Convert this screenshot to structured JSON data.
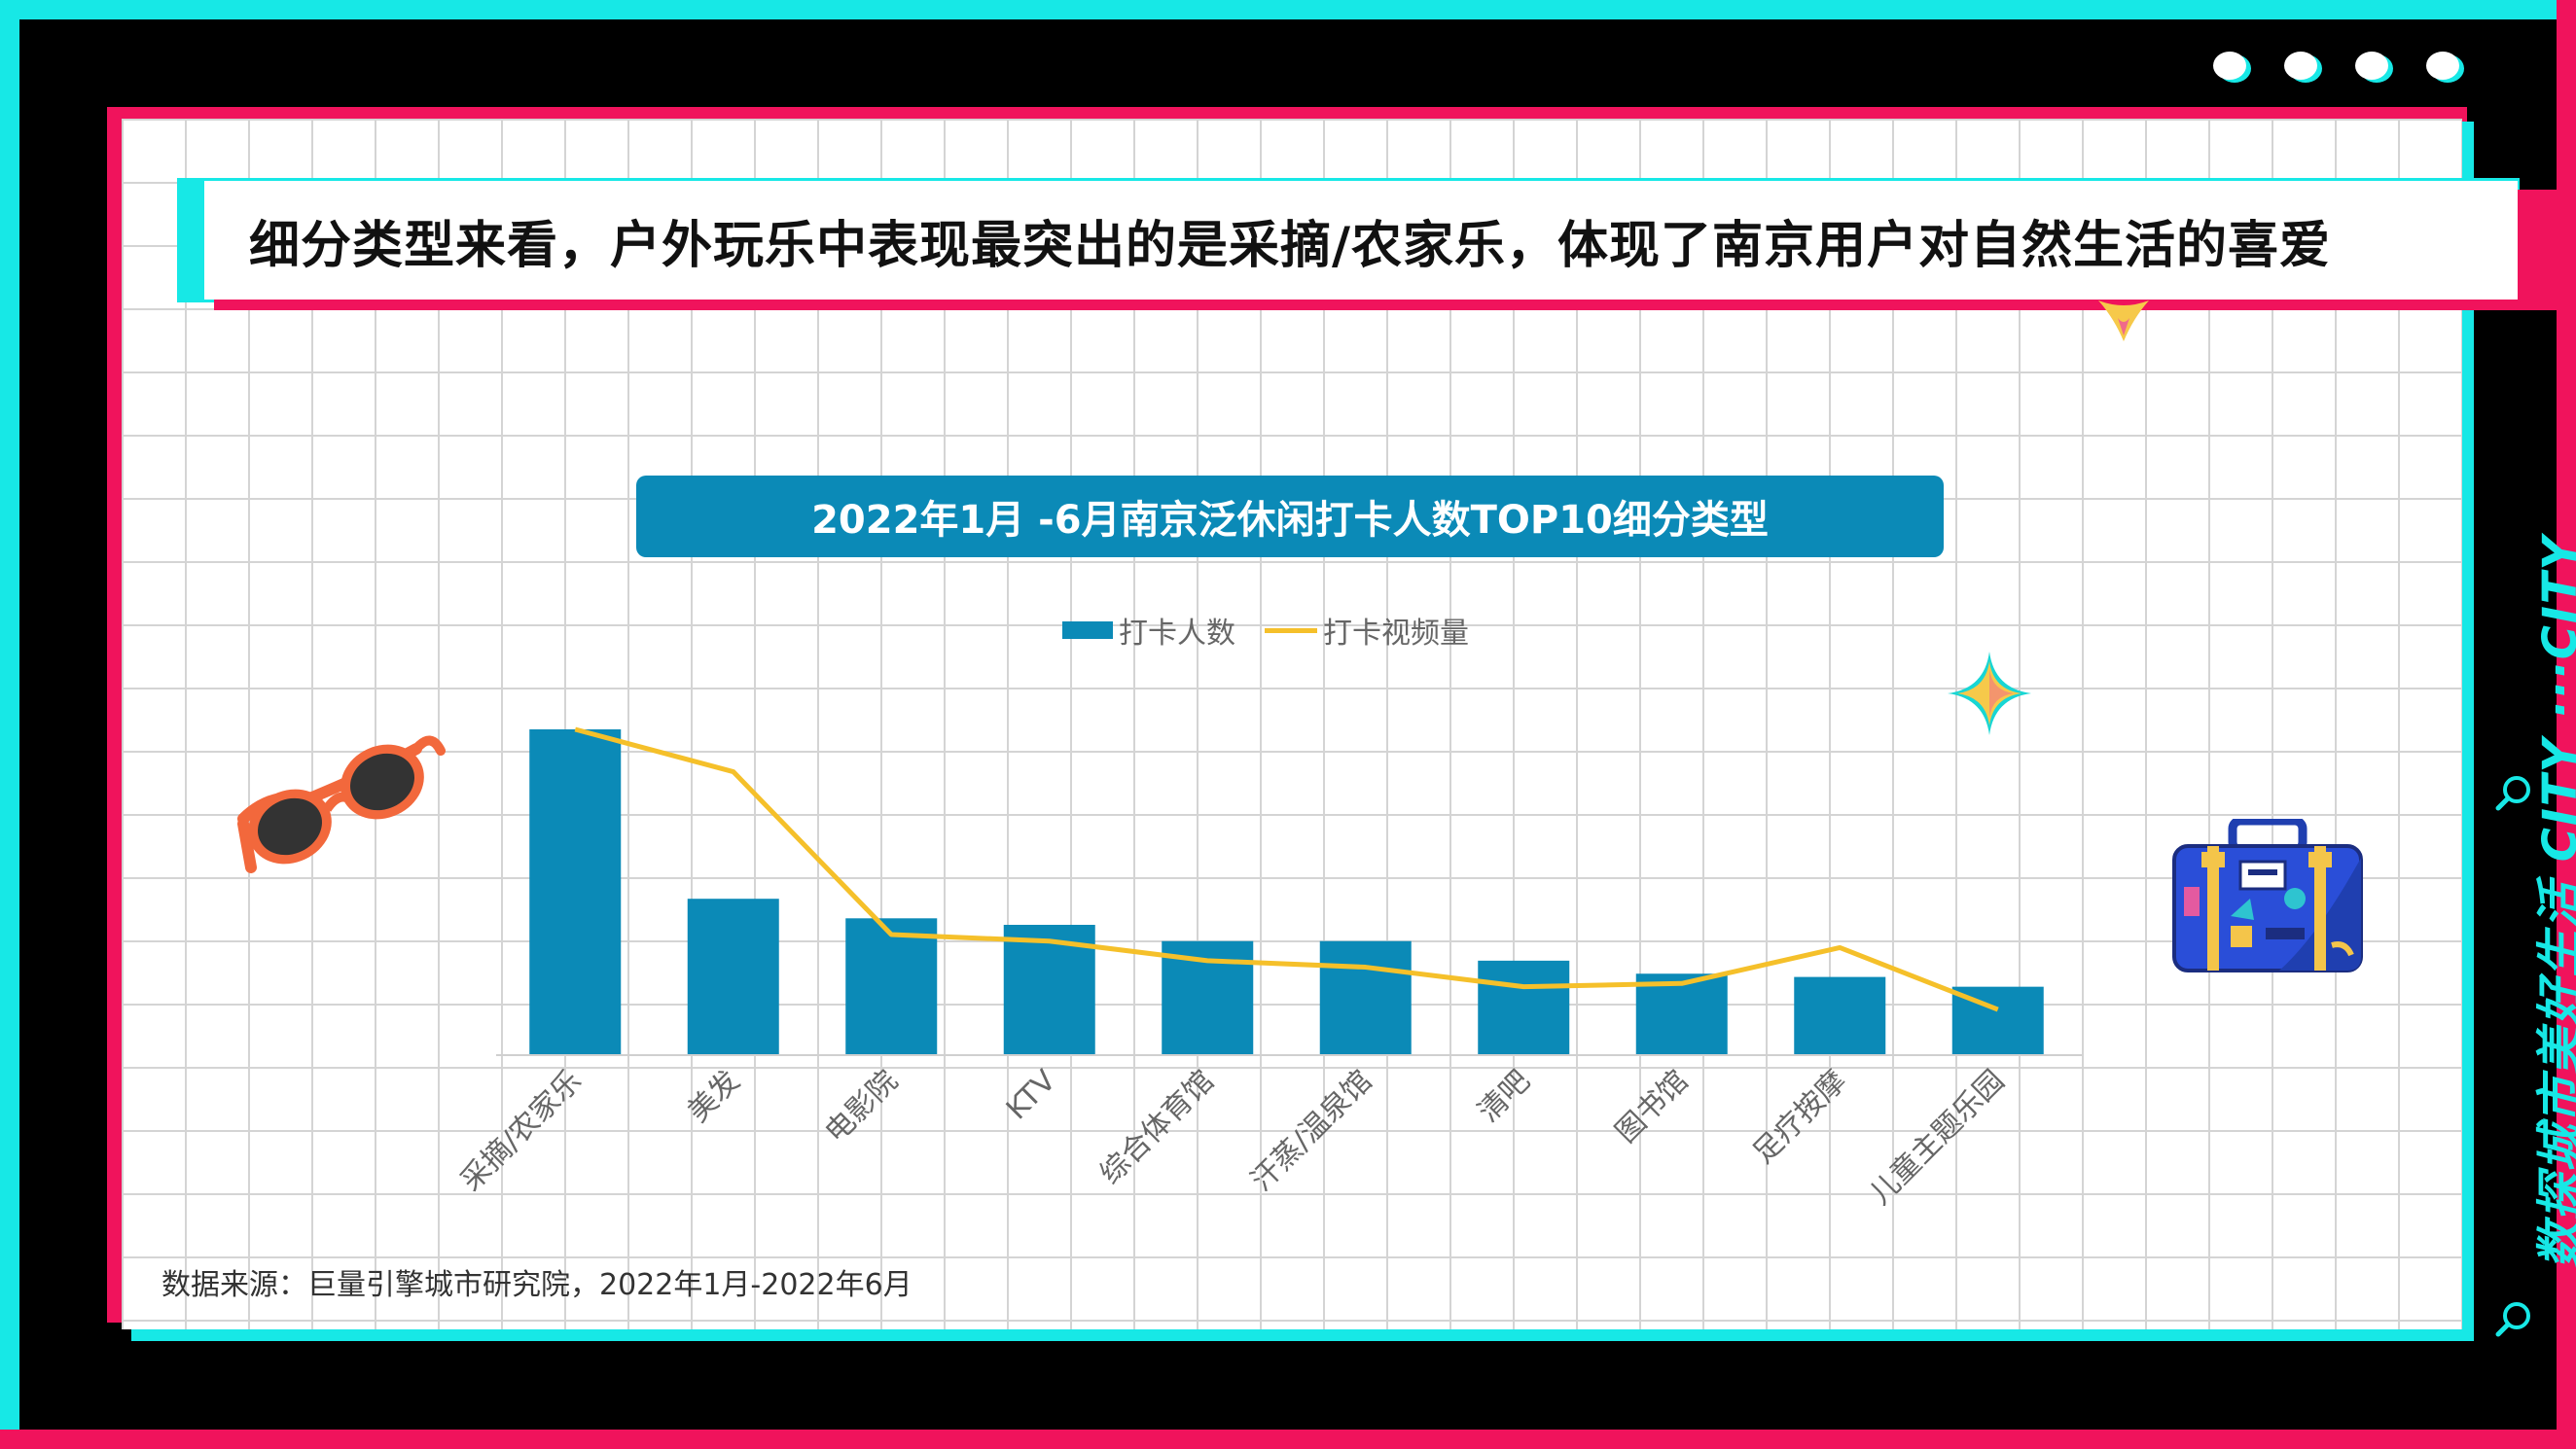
{
  "headline": "细分类型来看，户外玩乐中表现最突出的是采摘/农家乐，体现了南京用户对自然生活的喜爱",
  "side_caption": "数探城市美好生活 CITY ···CITY",
  "source": "数据来源：巨量引擎城市研究院，2022年1月-2022年6月",
  "colors": {
    "cyan": "#17e8e6",
    "red": "#f0135c",
    "bar": "#0b8ab7",
    "line": "#f5c02a"
  },
  "icons": [
    "sunglasses-icon",
    "sparkle-star-icon",
    "suitcase-icon",
    "search-icon"
  ],
  "chart_data": {
    "type": "bar",
    "title": "2022年1月 -6月南京泛休闲打卡人数TOP10细分类型",
    "categories": [
      "采摘/农家乐",
      "美发",
      "电影院",
      "KTV",
      "综合体育馆",
      "汗蒸/温泉馆",
      "清吧",
      "图书馆",
      "足疗按摩",
      "儿童主题乐园"
    ],
    "series": [
      {
        "name": "打卡人数",
        "type": "bar",
        "values": [
          100,
          48,
          42,
          40,
          35,
          35,
          29,
          25,
          24,
          21
        ]
      },
      {
        "name": "打卡视频量",
        "type": "line",
        "values": [
          100,
          87,
          37,
          35,
          29,
          27,
          21,
          22,
          33,
          14
        ]
      }
    ],
    "ylim": [
      0,
      100
    ],
    "grid": false,
    "legend": "top-center"
  }
}
